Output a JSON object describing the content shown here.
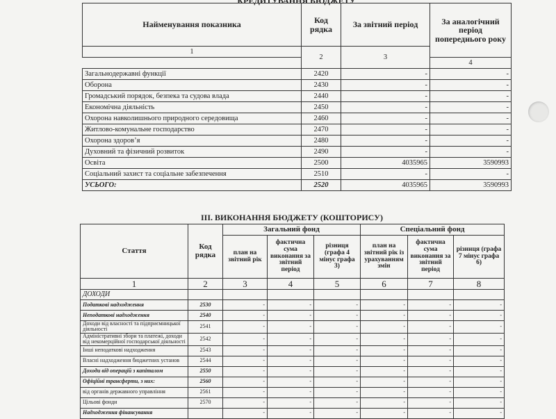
{
  "section2": {
    "title": "КРЕДИТУВАННЯ БЮДЖЕТУ",
    "headers": [
      "Найменування показника",
      "Код рядка",
      "За звітний період",
      "За аналогічний період попереднього року"
    ],
    "col_numbers": [
      "1",
      "2",
      "3",
      "4"
    ],
    "rows": [
      {
        "name": "Загальнодержавні функції",
        "code": "2420",
        "cur": "-",
        "prev": "-"
      },
      {
        "name": "Оборона",
        "code": "2430",
        "cur": "-",
        "prev": "-"
      },
      {
        "name": "Громадський порядок, безпека та судова влада",
        "code": "2440",
        "cur": "-",
        "prev": "-"
      },
      {
        "name": "Економічна діяльність",
        "code": "2450",
        "cur": "-",
        "prev": "-"
      },
      {
        "name": "Охорона навколишнього природного середовища",
        "code": "2460",
        "cur": "-",
        "prev": "-"
      },
      {
        "name": "Житлово-комунальне господарство",
        "code": "2470",
        "cur": "-",
        "prev": "-"
      },
      {
        "name": "Охорона здоров’я",
        "code": "2480",
        "cur": "-",
        "prev": "-"
      },
      {
        "name": "Духовний та фізичний розвиток",
        "code": "2490",
        "cur": "-",
        "prev": "-"
      },
      {
        "name": "Освіта",
        "code": "2500",
        "cur": "4035965",
        "prev": "3590993"
      },
      {
        "name": "Соціальний захист та соціальне забезпечення",
        "code": "2510",
        "cur": "-",
        "prev": "-"
      },
      {
        "name": "УСЬОГО:",
        "code": "2520",
        "cur": "4035965",
        "prev": "3590993"
      }
    ]
  },
  "section3": {
    "title": "III. ВИКОНАННЯ БЮДЖЕТУ (КОШТОРИСУ)",
    "headers": {
      "article": "Стаття",
      "code": "Код рядка",
      "general_fund": "Загальний фонд",
      "special_fund": "Спеціальний фонд",
      "c3": "план на звітний рік",
      "c4": "фактична сума виконання за звітний період",
      "c5": "різниця (графа 4 мінус графа 3)",
      "c6": "план на звітний рік із урахуванням змін",
      "c7": "фактична сума виконання за звітний період",
      "c8": "різниця (графа 7 мінус графа 6)"
    },
    "col_numbers": [
      "1",
      "2",
      "3",
      "4",
      "5",
      "6",
      "7",
      "8"
    ],
    "group": "ДОХОДИ",
    "rows": [
      {
        "name": "Податкові надходження",
        "code": "2530",
        "style": "bi"
      },
      {
        "name": "Неподаткові надходження",
        "code": "2540",
        "style": "bi"
      },
      {
        "name": "Доходи від власності та підприємницької діяльності",
        "code": "2541",
        "style": ""
      },
      {
        "name": "Адміністративні збори та платежі, доходи від некомерційної господарської діяльності",
        "code": "2542",
        "style": ""
      },
      {
        "name": "Інші неподаткові надходження",
        "code": "2543",
        "style": ""
      },
      {
        "name": "Власні надходження бюджетних установ",
        "code": "2544",
        "style": ""
      },
      {
        "name": "Доходи від операцій з капіталом",
        "code": "2550",
        "style": "bi"
      },
      {
        "name": "Офіційні трансферти, з них:",
        "code": "2560",
        "style": "bi"
      },
      {
        "name": "від органів державного управління",
        "code": "2561",
        "style": ""
      },
      {
        "name": "Цільові фонди",
        "code": "2570",
        "style": ""
      },
      {
        "name": "Надходження фінансування",
        "code": "",
        "style": "bi"
      }
    ],
    "dash": "-"
  }
}
